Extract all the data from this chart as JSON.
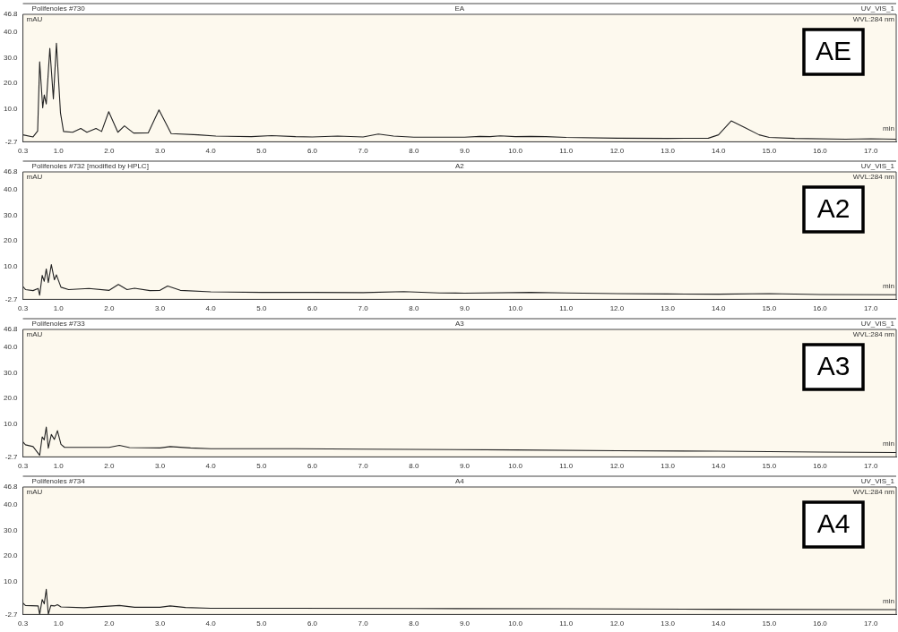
{
  "chart_data": [
    {
      "type": "line",
      "title": "Polifenoles #730",
      "subtitle": "EA",
      "xlabel": "min",
      "ylabel": "mAU",
      "annotations": [
        "UV_VIS_1",
        "WVL:284 nm",
        "AE"
      ],
      "color": "#222222",
      "x": [
        0.3,
        0.5,
        0.59,
        0.63,
        0.69,
        0.72,
        0.76,
        0.83,
        0.9,
        0.96,
        1.04,
        1.1,
        1.28,
        1.44,
        1.56,
        1.74,
        1.85,
        1.99,
        2.17,
        2.3,
        2.48,
        2.77,
        2.98,
        3.22,
        3.75,
        4.1,
        4.8,
        5.2,
        5.67,
        6.0,
        6.5,
        7.0,
        7.3,
        7.6,
        8.0,
        9.0,
        9.3,
        9.5,
        9.7,
        10.0,
        10.3,
        10.6,
        11.0,
        12.0,
        13.0,
        13.8,
        14.0,
        14.25,
        14.5,
        14.8,
        15.0,
        15.5,
        16.5,
        17.0,
        17.5
      ],
      "values": [
        0.0,
        -0.8,
        1.5,
        28.4,
        10.5,
        15.5,
        12.0,
        33.6,
        14.0,
        35.6,
        8.5,
        1.3,
        1.0,
        2.5,
        1.0,
        2.5,
        1.3,
        9.0,
        1.0,
        3.5,
        0.7,
        0.8,
        9.7,
        0.5,
        0.0,
        -0.5,
        -0.7,
        -0.3,
        -0.7,
        -0.8,
        -0.5,
        -0.8,
        0.3,
        -0.5,
        -0.9,
        -0.9,
        -0.6,
        -0.7,
        -0.4,
        -0.7,
        -0.6,
        -0.7,
        -1.0,
        -1.3,
        -1.4,
        -1.3,
        0.0,
        5.4,
        3.0,
        0.0,
        -1.0,
        -1.4,
        -1.7,
        -1.5,
        -1.7
      ],
      "xlim": [
        0.3,
        17.5
      ],
      "ylim": [
        -2.7,
        46.8
      ],
      "xticks": [
        {
          "value": 0.3,
          "label": "0.3"
        },
        {
          "value": 1,
          "label": "1.0"
        },
        {
          "value": 2,
          "label": "2.0"
        },
        {
          "value": 3,
          "label": "3.0"
        },
        {
          "value": 4,
          "label": "4.0"
        },
        {
          "value": 5,
          "label": "5.0"
        },
        {
          "value": 6,
          "label": "6.0"
        },
        {
          "value": 7,
          "label": "7.0"
        },
        {
          "value": 8,
          "label": "8.0"
        },
        {
          "value": 9,
          "label": "9.0"
        },
        {
          "value": 10,
          "label": "10.0"
        },
        {
          "value": 11,
          "label": "11.0"
        },
        {
          "value": 12,
          "label": "12.0"
        },
        {
          "value": 13,
          "label": "13.0"
        },
        {
          "value": 14,
          "label": "14.0"
        },
        {
          "value": 15,
          "label": "15.0"
        },
        {
          "value": 16,
          "label": "16.0"
        },
        {
          "value": 17,
          "label": "17.0"
        }
      ],
      "yticks": [
        {
          "value": -2.7,
          "label": "-2.7"
        },
        {
          "value": 10,
          "label": "10.0"
        },
        {
          "value": 20,
          "label": "20.0"
        },
        {
          "value": 30,
          "label": "30.0"
        },
        {
          "value": 40,
          "label": "40.0"
        },
        {
          "value": 46.8,
          "label": "46.8"
        }
      ]
    },
    {
      "type": "line",
      "title": "Polifenoles #732 [modified by HPLC]",
      "subtitle": "A2",
      "xlabel": "min",
      "ylabel": "mAU",
      "annotations": [
        "UV_VIS_1",
        "WVL:284 nm",
        "A2"
      ],
      "color": "#222222",
      "x": [
        0.3,
        0.35,
        0.5,
        0.6,
        0.63,
        0.68,
        0.72,
        0.76,
        0.8,
        0.86,
        0.92,
        0.96,
        1.05,
        1.2,
        1.6,
        2.0,
        2.18,
        2.35,
        2.5,
        2.8,
        3.0,
        3.15,
        3.4,
        4.0,
        5.0,
        6.0,
        7.0,
        7.8,
        8.5,
        9.0,
        10.3,
        11.0,
        12.0,
        13.0,
        14.0,
        15.0,
        16.0,
        17.5
      ],
      "values": [
        2.3,
        1.1,
        0.7,
        1.5,
        -1.1,
        6.6,
        4.3,
        9.1,
        3.8,
        10.8,
        4.9,
        6.8,
        2.0,
        1.1,
        1.5,
        0.8,
        3.1,
        1.1,
        1.6,
        0.7,
        0.8,
        2.5,
        0.8,
        0.2,
        0.0,
        0.0,
        -0.1,
        0.3,
        -0.2,
        -0.3,
        0.0,
        -0.2,
        -0.5,
        -0.6,
        -0.7,
        -0.5,
        -0.8,
        -0.9
      ],
      "xlim": [
        0.3,
        17.5
      ],
      "ylim": [
        -2.7,
        46.8
      ],
      "xticks": [
        {
          "value": 0.3,
          "label": "0.3"
        },
        {
          "value": 1,
          "label": "1.0"
        },
        {
          "value": 2,
          "label": "2.0"
        },
        {
          "value": 3,
          "label": "3.0"
        },
        {
          "value": 4,
          "label": "4.0"
        },
        {
          "value": 5,
          "label": "5.0"
        },
        {
          "value": 6,
          "label": "6.0"
        },
        {
          "value": 7,
          "label": "7.0"
        },
        {
          "value": 8,
          "label": "8.0"
        },
        {
          "value": 9,
          "label": "9.0"
        },
        {
          "value": 10,
          "label": "10.0"
        },
        {
          "value": 11,
          "label": "11.0"
        },
        {
          "value": 12,
          "label": "12.0"
        },
        {
          "value": 13,
          "label": "13.0"
        },
        {
          "value": 14,
          "label": "14.0"
        },
        {
          "value": 15,
          "label": "15.0"
        },
        {
          "value": 16,
          "label": "16.0"
        },
        {
          "value": 17,
          "label": "17.0"
        }
      ],
      "yticks": [
        {
          "value": -2.7,
          "label": "-2.7"
        },
        {
          "value": 10,
          "label": "10.0"
        },
        {
          "value": 20,
          "label": "20.0"
        },
        {
          "value": 30,
          "label": "30.0"
        },
        {
          "value": 40,
          "label": "40.0"
        },
        {
          "value": 46.8,
          "label": "46.8"
        }
      ]
    },
    {
      "type": "line",
      "title": "Polifenoles #733",
      "subtitle": "A3",
      "xlabel": "min",
      "ylabel": "mAU",
      "annotations": [
        "UV_VIS_1",
        "WVL:284 nm",
        "A3"
      ],
      "color": "#222222",
      "x": [
        0.3,
        0.35,
        0.5,
        0.63,
        0.68,
        0.72,
        0.76,
        0.8,
        0.86,
        0.92,
        0.98,
        1.05,
        1.12,
        2.0,
        2.2,
        2.4,
        3.0,
        3.2,
        3.6,
        4.0,
        5.67,
        7.0,
        10.0,
        12.0,
        14.0,
        16.0,
        17.5
      ],
      "values": [
        3.1,
        2.0,
        1.3,
        -2.1,
        5.1,
        3.9,
        8.9,
        0.7,
        6.0,
        4.1,
        7.5,
        2.2,
        1.0,
        1.0,
        1.8,
        0.9,
        0.8,
        1.3,
        0.8,
        0.5,
        0.5,
        0.3,
        0.0,
        -0.3,
        -0.5,
        -0.8,
        -1.0
      ],
      "xlim": [
        0.3,
        17.5
      ],
      "ylim": [
        -2.7,
        46.8
      ],
      "xticks": [
        {
          "value": 0.3,
          "label": "0.3"
        },
        {
          "value": 1,
          "label": "1.0"
        },
        {
          "value": 2,
          "label": "2.0"
        },
        {
          "value": 3,
          "label": "3.0"
        },
        {
          "value": 4,
          "label": "4.0"
        },
        {
          "value": 5,
          "label": "5.0"
        },
        {
          "value": 6,
          "label": "6.0"
        },
        {
          "value": 7,
          "label": "7.0"
        },
        {
          "value": 8,
          "label": "8.0"
        },
        {
          "value": 9,
          "label": "9.0"
        },
        {
          "value": 10,
          "label": "10.0"
        },
        {
          "value": 11,
          "label": "11.0"
        },
        {
          "value": 12,
          "label": "12.0"
        },
        {
          "value": 13,
          "label": "13.0"
        },
        {
          "value": 14,
          "label": "14.0"
        },
        {
          "value": 15,
          "label": "15.0"
        },
        {
          "value": 16,
          "label": "16.0"
        },
        {
          "value": 17,
          "label": "17.0"
        }
      ],
      "yticks": [
        {
          "value": -2.7,
          "label": "-2.7"
        },
        {
          "value": 10,
          "label": "10.0"
        },
        {
          "value": 20,
          "label": "20.0"
        },
        {
          "value": 30,
          "label": "30.0"
        },
        {
          "value": 40,
          "label": "40.0"
        },
        {
          "value": 46.8,
          "label": "46.8"
        }
      ]
    },
    {
      "type": "line",
      "title": "Polifenoles #734",
      "subtitle": "A4",
      "xlabel": "min",
      "ylabel": "mAU",
      "annotations": [
        "UV_VIS_1",
        "WVL:284 nm",
        "A4"
      ],
      "color": "#222222",
      "x": [
        0.3,
        0.35,
        0.6,
        0.63,
        0.68,
        0.72,
        0.76,
        0.8,
        0.85,
        0.92,
        0.98,
        1.05,
        1.5,
        2.2,
        2.5,
        3.0,
        3.2,
        3.5,
        4.0,
        5.67,
        8.0,
        11.0,
        14.0,
        17.5
      ],
      "values": [
        1.7,
        0.8,
        0.6,
        -2.7,
        3.1,
        1.4,
        7.1,
        -2.7,
        0.8,
        0.6,
        1.1,
        0.2,
        -0.1,
        0.8,
        0.1,
        0.1,
        0.6,
        0.0,
        -0.3,
        -0.3,
        -0.4,
        -0.5,
        -0.7,
        -0.8
      ],
      "xlim": [
        0.3,
        17.5
      ],
      "ylim": [
        -2.7,
        46.8
      ],
      "xticks": [
        {
          "value": 0.3,
          "label": "0.3"
        },
        {
          "value": 1,
          "label": "1.0"
        },
        {
          "value": 2,
          "label": "2.0"
        },
        {
          "value": 3,
          "label": "3.0"
        },
        {
          "value": 4,
          "label": "4.0"
        },
        {
          "value": 5,
          "label": "5.0"
        },
        {
          "value": 6,
          "label": "6.0"
        },
        {
          "value": 7,
          "label": "7.0"
        },
        {
          "value": 8,
          "label": "8.0"
        },
        {
          "value": 9,
          "label": "9.0"
        },
        {
          "value": 10,
          "label": "10.0"
        },
        {
          "value": 11,
          "label": "11.0"
        },
        {
          "value": 12,
          "label": "12.0"
        },
        {
          "value": 13,
          "label": "13.0"
        },
        {
          "value": 14,
          "label": "14.0"
        },
        {
          "value": 15,
          "label": "15.0"
        },
        {
          "value": 16,
          "label": "16.0"
        },
        {
          "value": 17,
          "label": "17.0"
        }
      ],
      "yticks": [
        {
          "value": -2.7,
          "label": "-2.7"
        },
        {
          "value": 10,
          "label": "10.0"
        },
        {
          "value": 20,
          "label": "20.0"
        },
        {
          "value": 30,
          "label": "30.0"
        },
        {
          "value": 40,
          "label": "40.0"
        },
        {
          "value": 46.8,
          "label": "46.8"
        }
      ]
    }
  ]
}
